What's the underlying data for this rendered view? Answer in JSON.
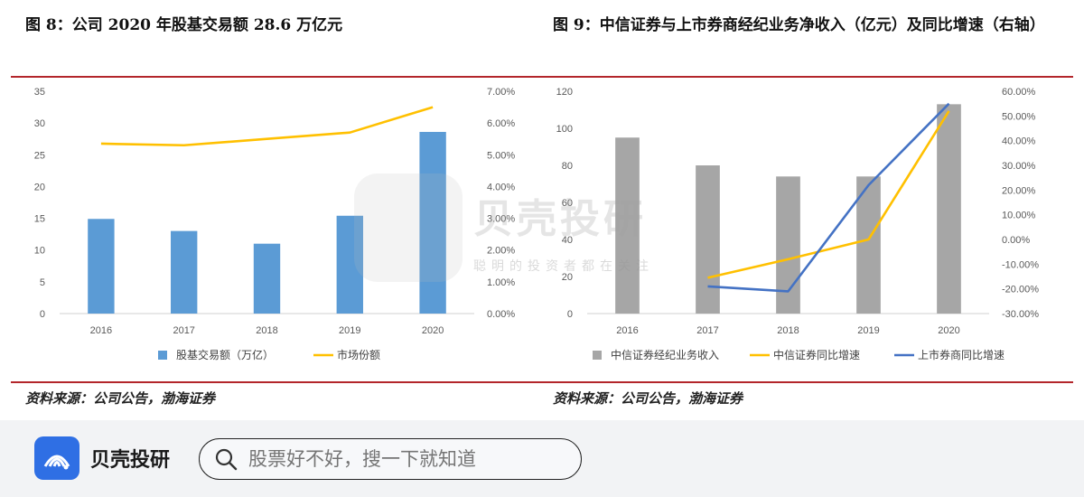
{
  "figures": {
    "left_title": "图 8：公司 2020 年股基交易额 28.6 万亿元",
    "right_title": "图 9：中信证券与上市券商经纪业务净收入（亿元）及同比增速（右轴）",
    "left_source": "资料来源：公司公告，渤海证券",
    "right_source": "资料来源：公司公告，渤海证券"
  },
  "watermark": {
    "name": "贝壳投研",
    "slogan": "聪明的投资者都在关注"
  },
  "footer": {
    "app_name": "贝壳投研",
    "search_placeholder": "股票好不好，搜一下就知道"
  },
  "colors": {
    "bar_blue": "#5b9bd5",
    "bar_gray": "#a6a6a6",
    "line_yellow": "#ffc000",
    "line_blue": "#4472c4",
    "rule_red": "#b3262b",
    "logo_blue": "#2f6fe4"
  },
  "icons": {
    "search": "search-icon",
    "logo": "seashell-logo-icon"
  },
  "chart_data": [
    {
      "type": "bar",
      "categories": [
        "2016",
        "2017",
        "2018",
        "2019",
        "2020"
      ],
      "series": [
        {
          "name": "股基交易额（万亿）",
          "kind": "bar",
          "axis": "left",
          "values": [
            14.9,
            13.0,
            11.0,
            15.4,
            28.6
          ]
        },
        {
          "name": "市场份额",
          "kind": "line",
          "axis": "right",
          "values": [
            5.35,
            5.3,
            5.5,
            5.7,
            6.5
          ]
        }
      ],
      "left_axis": {
        "ylim": [
          0,
          35
        ],
        "ticks": [
          "0",
          "5",
          "10",
          "15",
          "20",
          "25",
          "30",
          "35"
        ]
      },
      "right_axis": {
        "ylim": [
          0,
          7
        ],
        "ticks": [
          "0.00%",
          "1.00%",
          "2.00%",
          "3.00%",
          "4.00%",
          "5.00%",
          "6.00%",
          "7.00%"
        ]
      },
      "legend_position": "bottom",
      "grid": false
    },
    {
      "type": "bar",
      "categories": [
        "2016",
        "2017",
        "2018",
        "2019",
        "2020"
      ],
      "series": [
        {
          "name": "中信证券经纪业务收入",
          "kind": "bar",
          "axis": "left",
          "values": [
            95,
            80,
            74,
            74,
            113
          ]
        },
        {
          "name": "中信证券同比增速",
          "kind": "line",
          "axis": "right",
          "values": [
            null,
            -15.5,
            -8,
            0,
            52
          ]
        },
        {
          "name": "上市券商同比增速",
          "kind": "line",
          "axis": "right",
          "values": [
            null,
            -19,
            -21,
            22,
            55
          ]
        }
      ],
      "left_axis": {
        "ylim": [
          0,
          120
        ],
        "ticks": [
          "0",
          "20",
          "40",
          "60",
          "80",
          "100",
          "120"
        ]
      },
      "right_axis": {
        "ylim": [
          -30,
          60
        ],
        "ticks": [
          "-30.00%",
          "-20.00%",
          "-10.00%",
          "0.00%",
          "10.00%",
          "20.00%",
          "30.00%",
          "40.00%",
          "50.00%",
          "60.00%"
        ]
      },
      "legend_position": "bottom",
      "grid": false
    }
  ]
}
